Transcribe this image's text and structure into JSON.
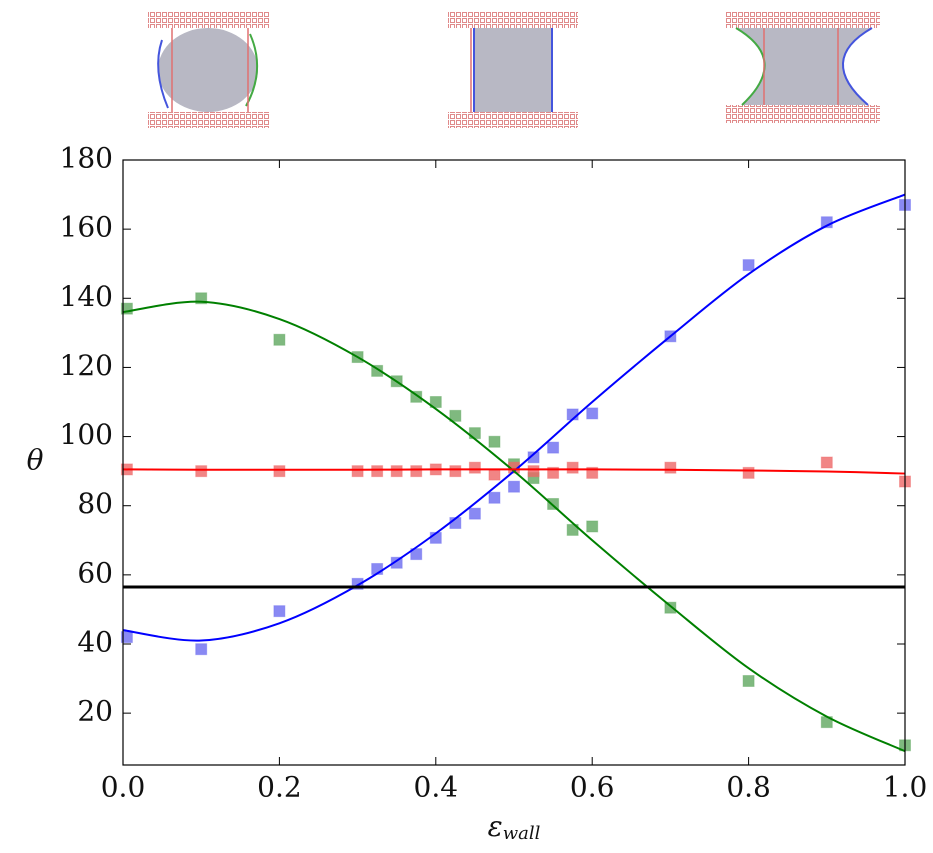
{
  "chart_data": {
    "type": "scatter",
    "ylabel": "θ",
    "xlabel": "ε",
    "xlabel_subscript": "wall",
    "xlim": [
      0,
      1
    ],
    "ylim": [
      5,
      180
    ],
    "xticks": [
      {
        "value": 0,
        "label": "0.0"
      },
      0.2,
      0.4,
      0.6,
      0.8,
      {
        "value": 1,
        "label": "1.0"
      }
    ],
    "yticks": [
      20,
      40,
      60,
      80,
      100,
      120,
      140,
      160,
      180
    ],
    "series": [
      {
        "style": "marker",
        "color": "#6b6bf0",
        "x": [
          0.005,
          0.1,
          0.2,
          0.3,
          0.325,
          0.35,
          0.375,
          0.4,
          0.425,
          0.45,
          0.475,
          0.5,
          0.525,
          0.55,
          0.575,
          0.6,
          0.7,
          0.8,
          0.9,
          1.0
        ],
        "values": [
          42,
          38.5,
          49.5,
          57.4,
          61.7,
          63.5,
          66,
          70.7,
          75,
          77.7,
          82.3,
          85.5,
          94,
          96.8,
          106.4,
          106.7,
          129,
          149.6,
          162,
          167
        ]
      },
      {
        "style": "marker",
        "color": "#5fa85f",
        "x": [
          0.005,
          0.1,
          0.2,
          0.3,
          0.325,
          0.35,
          0.375,
          0.4,
          0.425,
          0.45,
          0.475,
          0.5,
          0.525,
          0.55,
          0.575,
          0.6,
          0.7,
          0.8,
          0.9,
          1.0
        ],
        "values": [
          137,
          140,
          128,
          123,
          119,
          116,
          111.5,
          110,
          106,
          101,
          98.5,
          92,
          88,
          80.5,
          73,
          74,
          50.5,
          29.3,
          17.4,
          10.7
        ]
      },
      {
        "style": "marker",
        "color": "#ee6666",
        "x": [
          0.005,
          0.1,
          0.2,
          0.3,
          0.325,
          0.35,
          0.375,
          0.4,
          0.425,
          0.45,
          0.475,
          0.5,
          0.525,
          0.55,
          0.575,
          0.6,
          0.7,
          0.8,
          0.9,
          1.0
        ],
        "values": [
          90.5,
          90,
          90,
          90,
          90,
          90,
          90,
          90.5,
          90,
          91,
          89,
          91,
          90,
          89.5,
          91,
          89.5,
          91,
          89.5,
          92.5,
          87
        ]
      },
      {
        "style": "line",
        "color": "#0000ff",
        "x": [
          0,
          0.1,
          0.2,
          0.3,
          0.4,
          0.5,
          0.6,
          0.7,
          0.8,
          0.9,
          1.0
        ],
        "values": [
          44,
          41,
          46,
          57,
          72,
          90,
          110,
          129,
          147,
          161,
          170
        ]
      },
      {
        "style": "line",
        "color": "#008000",
        "x": [
          0,
          0.1,
          0.2,
          0.3,
          0.4,
          0.5,
          0.6,
          0.7,
          0.8,
          0.9,
          1.0
        ],
        "values": [
          136,
          139,
          134,
          123,
          108,
          90,
          70,
          51,
          33,
          19,
          9
        ]
      },
      {
        "style": "line",
        "color": "#ff0000",
        "x": [
          0,
          0.1,
          0.2,
          0.3,
          0.4,
          0.5,
          0.6,
          0.7,
          0.8,
          0.9,
          1.0
        ],
        "values": [
          90.5,
          90.4,
          90.4,
          90.4,
          90.5,
          90.5,
          90.5,
          90.4,
          90.2,
          89.9,
          89.3
        ]
      },
      {
        "style": "line",
        "color": "#000000",
        "x": [
          0,
          1
        ],
        "values": [
          56.5,
          56.5
        ]
      }
    ]
  }
}
